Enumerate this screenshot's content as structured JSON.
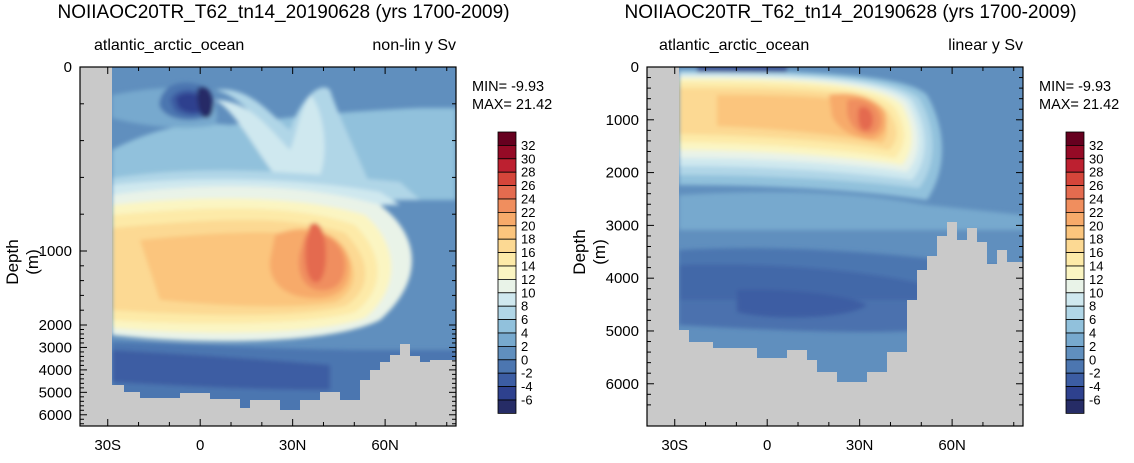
{
  "colorbar": {
    "labels": [
      "32",
      "30",
      "28",
      "26",
      "24",
      "22",
      "20",
      "18",
      "16",
      "14",
      "12",
      "10",
      "8",
      "6",
      "4",
      "2",
      "0",
      "-2",
      "-4",
      "-6"
    ],
    "colors": [
      "#66001f",
      "#950a26",
      "#bd2030",
      "#d5453a",
      "#e46b4f",
      "#f08e5e",
      "#f7aa6a",
      "#fbc57d",
      "#fcd993",
      "#fdeaa8",
      "#fbf5c2",
      "#e9f3e8",
      "#cfe8ef",
      "#b0d6e7",
      "#91c1dc",
      "#77a9ce",
      "#608fbe",
      "#4c76b0",
      "#3c5da3",
      "#2e418e",
      "#262c66"
    ]
  },
  "chart_data": [
    {
      "type": "contour",
      "title": "NOIIAOC20TR_T62_tn14_20190628 (yrs 1700-2009)",
      "subtitle_left": "atlantic_arctic_ocean",
      "subtitle_right": "non-lin y Sv",
      "min_text": "MIN= -9.93",
      "max_text": "MAX= 21.42",
      "ylabel": "Depth (m)",
      "y_scale": "non-linear",
      "xticks": [
        "30S",
        "0",
        "30N",
        "60N"
      ],
      "xtick_values": [
        -30,
        0,
        30,
        60
      ],
      "yticks": [
        "0",
        "1000",
        "2000",
        "3000",
        "4000",
        "5000",
        "6000"
      ],
      "ytick_values": [
        0,
        1000,
        2000,
        3000,
        4000,
        5000,
        6000
      ],
      "xlim": [
        -39,
        83
      ],
      "ylim": [
        0,
        6500
      ],
      "min": -9.93,
      "max": 21.42,
      "features": [
        {
          "feature": "negative cell near equator",
          "lat": -5,
          "depth": 200,
          "value": -9.9
        },
        {
          "feature": "maximum overturning core",
          "lat": 35,
          "depth": 1000,
          "value": 21.4
        },
        {
          "feature": "bottom counter-cell",
          "lat": 5,
          "depth": 4500,
          "value": -3
        }
      ]
    },
    {
      "type": "contour",
      "title": "NOIIAOC20TR_T62_tn14_20190628 (yrs 1700-2009)",
      "subtitle_left": "atlantic_arctic_ocean",
      "subtitle_right": "linear y Sv",
      "min_text": "MIN= -9.93",
      "max_text": "MAX= 21.42",
      "ylabel": "Depth (m)",
      "y_scale": "linear",
      "xticks": [
        "30S",
        "0",
        "30N",
        "60N"
      ],
      "xtick_values": [
        -30,
        0,
        30,
        60
      ],
      "yticks": [
        "0",
        "1000",
        "2000",
        "3000",
        "4000",
        "5000",
        "6000"
      ],
      "ytick_values": [
        0,
        1000,
        2000,
        3000,
        4000,
        5000,
        6000
      ],
      "xlim": [
        -39,
        83
      ],
      "ylim": [
        0,
        6800
      ],
      "min": -9.93,
      "max": 21.42,
      "features": [
        {
          "feature": "maximum overturning core",
          "lat": 35,
          "depth": 1000,
          "value": 21.4
        },
        {
          "feature": "bottom counter-cell",
          "lat": 5,
          "depth": 4500,
          "value": -3
        }
      ]
    }
  ]
}
